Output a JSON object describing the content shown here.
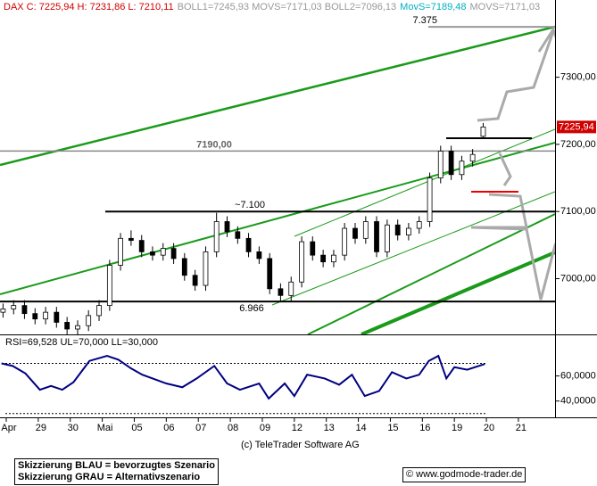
{
  "header": {
    "price": "DAX C: 7225,94 H: 7231,86 L: 7210,11",
    "boll": "BOLL1=7245,93 MOVS=7171,03 BOLL2=7096,13",
    "movs": "MovS=7189,48",
    "movs2": "MOVS=7171,03"
  },
  "chart_data": [
    {
      "type": "candlestick",
      "x": [
        -0.1,
        0.23,
        0.57,
        0.9,
        1.23,
        1.57,
        1.9,
        2.23,
        2.57,
        2.9,
        3.23,
        3.57,
        3.9,
        4.23,
        4.57,
        4.9,
        5.23,
        5.57,
        5.9,
        6.23,
        6.57,
        6.9,
        7.23,
        7.57,
        7.9,
        8.23,
        8.57,
        8.9,
        9.23,
        9.57,
        9.9,
        10.23,
        10.57,
        10.9,
        11.23,
        11.57,
        11.9,
        12.23,
        12.57,
        12.9,
        13.23,
        13.57,
        13.9,
        14.23,
        14.57,
        14.9
      ],
      "open": [
        6950,
        6955,
        6960,
        6948,
        6940,
        6950,
        6935,
        6925,
        6930,
        6945,
        6960,
        7020,
        7060,
        7057,
        7040,
        7035,
        7045,
        7030,
        7005,
        6990,
        7040,
        7085,
        7070,
        7060,
        7040,
        7030,
        6985,
        6975,
        6995,
        7055,
        7035,
        7025,
        7035,
        7075,
        7060,
        7085,
        7040,
        7080,
        7065,
        7075,
        7085,
        7150,
        7190,
        7155,
        7175,
        7212
      ],
      "high": [
        6963,
        6968,
        6968,
        6956,
        6958,
        6958,
        6943,
        6938,
        6953,
        6968,
        7028,
        7068,
        7072,
        7065,
        7048,
        7053,
        7053,
        7038,
        7013,
        7048,
        7098,
        7093,
        7078,
        7068,
        7048,
        7038,
        6993,
        7003,
        7063,
        7063,
        7043,
        7043,
        7083,
        7083,
        7093,
        7093,
        7088,
        7088,
        7083,
        7093,
        7158,
        7198,
        7198,
        7183,
        7193,
        7231.86
      ],
      "low": [
        6942,
        6947,
        6940,
        6932,
        6932,
        6927,
        6917,
        6917,
        6922,
        6937,
        6952,
        7012,
        7049,
        7032,
        7027,
        7027,
        7022,
        6997,
        6982,
        6982,
        7032,
        7062,
        7052,
        7032,
        7022,
        6977,
        6966,
        6967,
        6987,
        7027,
        7017,
        7017,
        7027,
        7052,
        7052,
        7032,
        7032,
        7057,
        7057,
        7067,
        7077,
        7142,
        7147,
        7147,
        7167,
        7210.11
      ],
      "close": [
        6955,
        6960,
        6948,
        6940,
        6950,
        6935,
        6925,
        6930,
        6945,
        6960,
        7020,
        7060,
        7057,
        7040,
        7035,
        7045,
        7030,
        7005,
        6990,
        7040,
        7085,
        7070,
        7060,
        7040,
        7030,
        6985,
        6975,
        6995,
        7055,
        7035,
        7025,
        7035,
        7075,
        7060,
        7085,
        7040,
        7080,
        7065,
        7075,
        7085,
        7150,
        7190,
        7155,
        7175,
        7185,
        7225.94
      ],
      "xlim": [
        -0.195,
        17.145
      ],
      "xticks": [
        {
          "value": 0,
          "label": "Apr"
        },
        {
          "value": 1,
          "label": "29"
        },
        {
          "value": 2,
          "label": "30"
        },
        {
          "value": 3,
          "label": "Mai"
        },
        {
          "value": 4,
          "label": "05"
        },
        {
          "value": 5,
          "label": "06"
        },
        {
          "value": 6,
          "label": "07"
        },
        {
          "value": 7,
          "label": "08"
        },
        {
          "value": 8,
          "label": "09"
        },
        {
          "value": 9,
          "label": "12"
        },
        {
          "value": 10,
          "label": "13"
        },
        {
          "value": 11,
          "label": "14"
        },
        {
          "value": 12,
          "label": "15"
        },
        {
          "value": 13,
          "label": "16"
        },
        {
          "value": 14,
          "label": "19"
        },
        {
          "value": 15,
          "label": "20"
        },
        {
          "value": 16,
          "label": "21"
        }
      ],
      "ylim": [
        6917,
        7415
      ],
      "yticks": [
        {
          "value": 7000,
          "label": "7000,00"
        },
        {
          "value": 7100,
          "label": "7100,00"
        },
        {
          "value": 7200,
          "label": "7200,00"
        },
        {
          "value": 7300,
          "label": "7300,00"
        }
      ],
      "price_tag": {
        "value": 7225.94,
        "label": "7225,94"
      },
      "levels": [
        {
          "value": 7375,
          "label": "7.375"
        },
        {
          "value": 7190,
          "label": "7190,00"
        },
        {
          "value": 7100,
          "label": "~7.100"
        },
        {
          "value": 6966,
          "label": "6.966"
        }
      ]
    },
    {
      "type": "line",
      "title": "RSI=69,528 UL=70,000 LL=30,000",
      "color": "#000080",
      "x": [
        -0.15,
        0.2,
        0.6,
        1.05,
        1.4,
        1.75,
        2.1,
        2.6,
        3.15,
        3.5,
        3.9,
        4.25,
        5.0,
        5.5,
        5.95,
        6.5,
        6.9,
        7.3,
        7.9,
        8.2,
        8.7,
        9.0,
        9.4,
        9.95,
        10.4,
        10.8,
        11.2,
        11.65,
        12.05,
        12.5,
        12.9,
        13.2,
        13.5,
        13.75,
        14.0,
        14.4,
        14.95
      ],
      "values": [
        70,
        68,
        62,
        49,
        52,
        49,
        55,
        72,
        76,
        73,
        66,
        61,
        54,
        51,
        58,
        68,
        54,
        49,
        54,
        42,
        54,
        44,
        61,
        58,
        53,
        61,
        44,
        48,
        63,
        58,
        61,
        72,
        76,
        58,
        67,
        65,
        69.528
      ],
      "ylim": [
        27,
        91
      ],
      "yticks": [
        {
          "value": 40,
          "label": "40,0000"
        },
        {
          "value": 60,
          "label": "60,0000"
        }
      ],
      "bands": [
        70,
        30
      ]
    }
  ],
  "footer": {
    "copyright": "(c) TeleTrader Software AG",
    "blue": "Skizzierung BLAU = bevorzugtes Szenario",
    "gray": "Skizzierung GRAU = Alternativszenario",
    "site": "© www.godmode-trader.de"
  }
}
